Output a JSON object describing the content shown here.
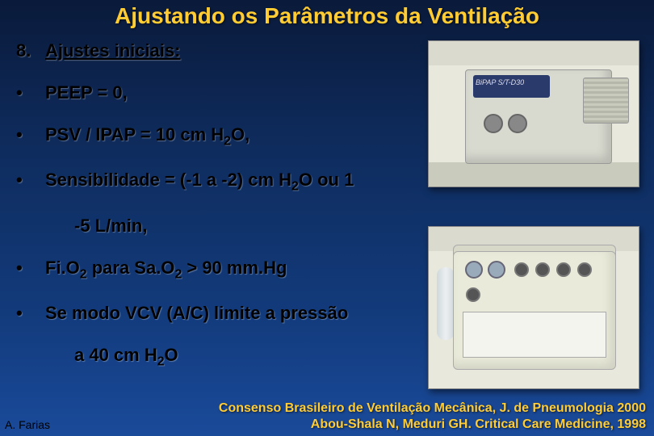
{
  "colors": {
    "title": "#ffcc33",
    "footer": "#ffcc33",
    "body_text": "#000000",
    "bg_gradient": [
      "#0a1a3a",
      "#0e2a5a",
      "#123a7a",
      "#1a4a9a"
    ]
  },
  "title": "Ajustando os Parâmetros da Ventilação",
  "section": {
    "number": "8.",
    "heading": "Ajustes iniciais:"
  },
  "bullets": [
    {
      "marker": "•",
      "text_html": "PEEP = 0,"
    },
    {
      "marker": "•",
      "text_html": "PSV / IPAP = 10 cm H<span class='sub'>2</span>O,"
    },
    {
      "marker": "•",
      "text_html": "Sensibilidade = (-1 a -2) cm H<span class='sub'>2</span>O ou 1"
    },
    {
      "marker": "",
      "text_html": "-5 L/min,",
      "indent": true
    },
    {
      "marker": "•",
      "text_html": "Fi.O<span class='sub'>2</span> para Sa.O<span class='sub'>2</span> &gt; 90 mm.Hg"
    },
    {
      "marker": "•",
      "text_html": "Se modo VCV (A/C) limite a pressão"
    },
    {
      "marker": "",
      "text_html": "a 40 cm H<span class='sub'>2</span>O",
      "indent": true
    }
  ],
  "devices": {
    "top": {
      "label": "BiPAP S/T-D30",
      "type": "bipap-ventilator-photo"
    },
    "bottom": {
      "type": "portable-ventilator-photo"
    }
  },
  "footer": {
    "line1": "Consenso Brasileiro de Ventilação Mecânica, J. de Pneumologia 2000",
    "line2": "Abou-Shala N, Meduri GH. Critical Care Medicine, 1998"
  },
  "author": "A. Farias"
}
